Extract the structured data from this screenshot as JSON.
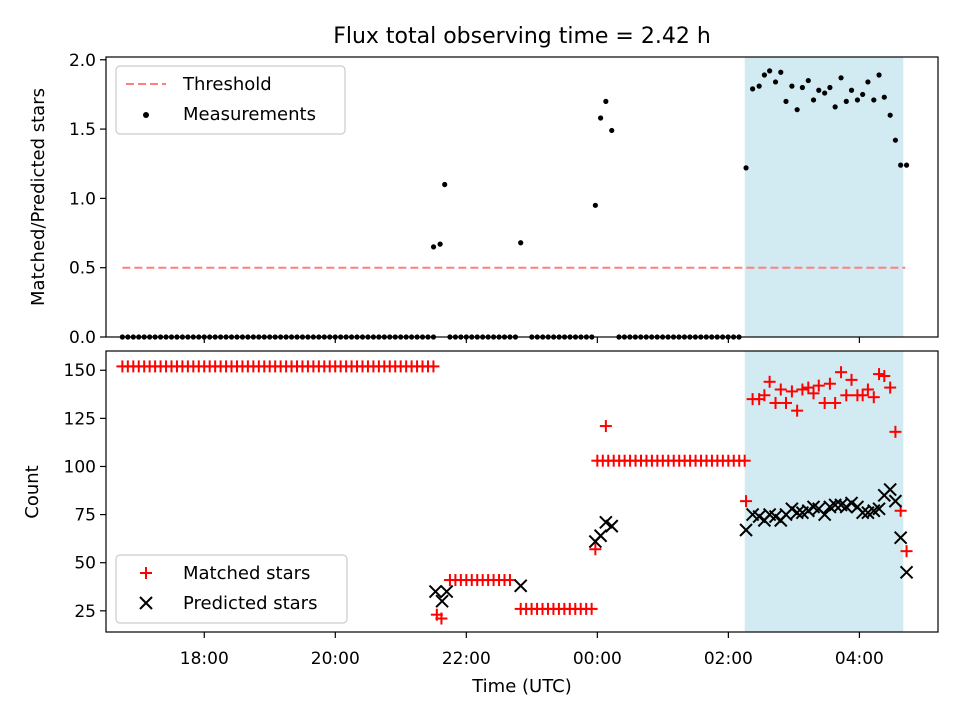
{
  "title": "Flux total observing time = 2.42 h",
  "colors": {
    "threshold": "#ff7f7f",
    "measurement": "#000000",
    "matched": "#ff0000",
    "predicted": "#000000",
    "shade": "#add8e6"
  },
  "chart_data": [
    {
      "type": "scatter",
      "ylabel": "Matched/Predicted stars",
      "xlim": [
        16.5,
        5.2
      ],
      "ylim": [
        0,
        2.02
      ],
      "yticks": [
        "0.0",
        "0.5",
        "1.0",
        "1.5",
        "2.0"
      ],
      "ytick_values": [
        0,
        0.5,
        1.0,
        1.5,
        2.0
      ],
      "legend": {
        "position": "upper left",
        "entries": [
          "Threshold",
          "Measurements"
        ]
      },
      "threshold": {
        "value": 0.5,
        "x_range": [
          16.75,
          4.7
        ]
      },
      "shaded_region_hours": [
        2.25,
        4.67
      ],
      "zero_segments": [
        {
          "from": 16.75,
          "to": 21.5,
          "step": 0.0833
        },
        {
          "from": 21.75,
          "to": 22.75,
          "step": 0.0833
        },
        {
          "from": 23.0,
          "to": 23.92,
          "step": 0.0833
        },
        {
          "from": 0.33,
          "to": 2.2,
          "step": 0.0833
        }
      ],
      "measurements": [
        [
          21.5,
          0.65
        ],
        [
          21.6,
          0.67
        ],
        [
          21.67,
          1.1
        ],
        [
          22.83,
          0.68
        ],
        [
          23.97,
          0.95
        ],
        [
          0.05,
          1.58
        ],
        [
          0.13,
          1.7
        ],
        [
          0.22,
          1.49
        ],
        [
          2.27,
          1.22
        ],
        [
          2.37,
          1.79
        ],
        [
          2.47,
          1.81
        ],
        [
          2.55,
          1.89
        ],
        [
          2.63,
          1.92
        ],
        [
          2.72,
          1.84
        ],
        [
          2.8,
          1.91
        ],
        [
          2.88,
          1.7
        ],
        [
          2.97,
          1.81
        ],
        [
          3.05,
          1.64
        ],
        [
          3.13,
          1.8
        ],
        [
          3.22,
          1.85
        ],
        [
          3.3,
          1.71
        ],
        [
          3.38,
          1.78
        ],
        [
          3.47,
          1.76
        ],
        [
          3.55,
          1.8
        ],
        [
          3.63,
          1.66
        ],
        [
          3.72,
          1.87
        ],
        [
          3.8,
          1.7
        ],
        [
          3.88,
          1.78
        ],
        [
          3.97,
          1.71
        ],
        [
          4.05,
          1.75
        ],
        [
          4.13,
          1.84
        ],
        [
          4.22,
          1.71
        ],
        [
          4.3,
          1.89
        ],
        [
          4.38,
          1.73
        ],
        [
          4.47,
          1.6
        ],
        [
          4.55,
          1.42
        ],
        [
          4.63,
          1.24
        ],
        [
          4.72,
          1.24
        ]
      ]
    },
    {
      "type": "scatter",
      "ylabel": "Count",
      "xlabel": "Time (UTC)",
      "xlim": [
        16.5,
        5.2
      ],
      "ylim": [
        14,
        160
      ],
      "yticks": [
        "25",
        "50",
        "75",
        "100",
        "125",
        "150"
      ],
      "ytick_values": [
        25,
        50,
        75,
        100,
        125,
        150
      ],
      "xticks": [
        "18:00",
        "20:00",
        "22:00",
        "00:00",
        "02:00",
        "04:00"
      ],
      "xtick_values": [
        18,
        20,
        22,
        0,
        2,
        4
      ],
      "legend": {
        "position": "lower left",
        "entries": [
          "Matched stars",
          "Predicted stars"
        ]
      },
      "shaded_region_hours": [
        2.25,
        4.67
      ],
      "matched_segments": [
        {
          "from": 16.75,
          "to": 21.58,
          "step": 0.0833,
          "value": 152
        },
        {
          "from": 21.75,
          "to": 22.67,
          "step": 0.0833,
          "value": 41
        },
        {
          "from": 22.83,
          "to": 23.92,
          "step": 0.0833,
          "value": 26
        },
        {
          "from": 0.0,
          "to": 2.25,
          "step": 0.0833,
          "value": 103
        }
      ],
      "matched_points": [
        [
          21.55,
          23
        ],
        [
          21.62,
          21
        ],
        [
          23.97,
          57
        ],
        [
          0.13,
          121
        ],
        [
          2.27,
          82
        ],
        [
          2.37,
          135
        ],
        [
          2.47,
          135
        ],
        [
          2.55,
          137
        ],
        [
          2.63,
          144
        ],
        [
          2.72,
          133
        ],
        [
          2.8,
          140
        ],
        [
          2.88,
          133
        ],
        [
          2.97,
          139
        ],
        [
          3.05,
          129
        ],
        [
          3.13,
          140
        ],
        [
          3.22,
          141
        ],
        [
          3.3,
          138
        ],
        [
          3.38,
          142
        ],
        [
          3.47,
          133
        ],
        [
          3.55,
          143
        ],
        [
          3.63,
          133
        ],
        [
          3.72,
          149
        ],
        [
          3.8,
          137
        ],
        [
          3.88,
          145
        ],
        [
          3.97,
          137
        ],
        [
          4.05,
          137
        ],
        [
          4.13,
          140
        ],
        [
          4.22,
          136
        ],
        [
          4.3,
          148
        ],
        [
          4.38,
          147
        ],
        [
          4.47,
          141
        ],
        [
          4.55,
          118
        ],
        [
          4.63,
          77
        ],
        [
          4.72,
          56
        ]
      ],
      "predicted_points": [
        [
          21.53,
          35
        ],
        [
          21.63,
          30
        ],
        [
          21.7,
          35
        ],
        [
          22.83,
          38
        ],
        [
          23.97,
          61
        ],
        [
          0.05,
          64
        ],
        [
          0.13,
          71
        ],
        [
          0.22,
          69
        ],
        [
          2.27,
          67
        ],
        [
          2.37,
          75
        ],
        [
          2.47,
          74
        ],
        [
          2.55,
          72
        ],
        [
          2.63,
          75
        ],
        [
          2.72,
          74
        ],
        [
          2.8,
          72
        ],
        [
          2.88,
          75
        ],
        [
          2.97,
          78
        ],
        [
          3.05,
          76
        ],
        [
          3.13,
          76
        ],
        [
          3.22,
          77
        ],
        [
          3.3,
          79
        ],
        [
          3.38,
          78
        ],
        [
          3.47,
          75
        ],
        [
          3.55,
          79
        ],
        [
          3.63,
          80
        ],
        [
          3.72,
          80
        ],
        [
          3.8,
          79
        ],
        [
          3.88,
          81
        ],
        [
          3.97,
          79
        ],
        [
          4.05,
          76
        ],
        [
          4.13,
          76
        ],
        [
          4.22,
          77
        ],
        [
          4.3,
          78
        ],
        [
          4.38,
          85
        ],
        [
          4.47,
          88
        ],
        [
          4.55,
          82
        ],
        [
          4.63,
          63
        ],
        [
          4.72,
          45
        ]
      ]
    }
  ]
}
